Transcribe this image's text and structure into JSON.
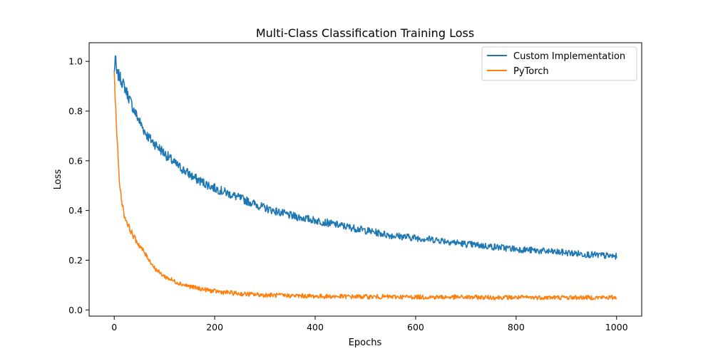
{
  "chart_data": {
    "type": "line",
    "title": "Multi-Class Classification Training Loss",
    "xlabel": "Epochs",
    "ylabel": "Loss",
    "xlim": [
      -50,
      1050
    ],
    "ylim": [
      -0.025,
      1.075
    ],
    "xticks": [
      0,
      200,
      400,
      600,
      800,
      1000
    ],
    "xtick_labels": [
      "0",
      "200",
      "400",
      "600",
      "800",
      "1000"
    ],
    "yticks": [
      0.0,
      0.2,
      0.4,
      0.6,
      0.8,
      1.0
    ],
    "ytick_labels": [
      "0.0",
      "0.2",
      "0.4",
      "0.6",
      "0.8",
      "1.0"
    ],
    "grid": false,
    "legend_position": "top-right",
    "series": [
      {
        "name": "Custom Implementation",
        "color": "#1f77b4",
        "x": [
          0,
          2,
          5,
          10,
          20,
          30,
          40,
          50,
          60,
          70,
          80,
          90,
          100,
          120,
          140,
          160,
          180,
          200,
          250,
          300,
          350,
          400,
          450,
          500,
          550,
          600,
          650,
          700,
          750,
          800,
          850,
          900,
          950,
          1000
        ],
        "y": [
          0.95,
          1.02,
          0.95,
          0.94,
          0.9,
          0.85,
          0.8,
          0.76,
          0.72,
          0.69,
          0.67,
          0.65,
          0.63,
          0.59,
          0.56,
          0.53,
          0.51,
          0.49,
          0.45,
          0.41,
          0.38,
          0.36,
          0.34,
          0.32,
          0.3,
          0.29,
          0.28,
          0.265,
          0.255,
          0.245,
          0.237,
          0.23,
          0.222,
          0.215
        ]
      },
      {
        "name": "PyTorch",
        "color": "#ff7f0e",
        "x": [
          0,
          2,
          5,
          8,
          10,
          15,
          20,
          30,
          40,
          50,
          60,
          70,
          80,
          90,
          100,
          120,
          140,
          160,
          180,
          200,
          250,
          300,
          400,
          500,
          600,
          700,
          800,
          900,
          1000
        ],
        "y": [
          0.95,
          0.85,
          0.72,
          0.6,
          0.52,
          0.44,
          0.38,
          0.33,
          0.29,
          0.26,
          0.23,
          0.2,
          0.17,
          0.15,
          0.135,
          0.115,
          0.1,
          0.09,
          0.082,
          0.075,
          0.065,
          0.06,
          0.055,
          0.053,
          0.052,
          0.051,
          0.05,
          0.05,
          0.05
        ]
      }
    ]
  }
}
